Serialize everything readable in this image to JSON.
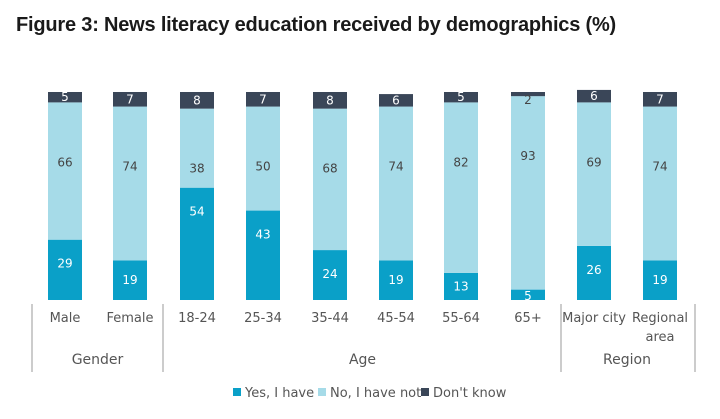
{
  "title": "Figure 3: News literacy education received by demographics (%)",
  "colors": {
    "yes": "#0aa0c8",
    "no": "#a6dbe8",
    "dont_know": "#3a4658",
    "label_dark": "#444444",
    "label_light": "#ffffff",
    "rule": "#999999"
  },
  "chart_data": {
    "type": "bar",
    "stacked": true,
    "percent_scale": true,
    "ylim": [
      0,
      100
    ],
    "categories": [
      "Male",
      "Female",
      "18-24",
      "25-34",
      "35-44",
      "45-54",
      "55-64",
      "65+",
      "Major city",
      "Regional area"
    ],
    "category_label_lines": [
      [
        "Male"
      ],
      [
        "Female"
      ],
      [
        "18-24"
      ],
      [
        "25-34"
      ],
      [
        "35-44"
      ],
      [
        "45-54"
      ],
      [
        "55-64"
      ],
      [
        "65+"
      ],
      [
        "Major city"
      ],
      [
        "Regional",
        "area"
      ]
    ],
    "series": [
      {
        "name": "Yes, I have",
        "key": "yes",
        "values": [
          29,
          19,
          54,
          43,
          24,
          19,
          13,
          5,
          26,
          19
        ]
      },
      {
        "name": "No, I have not",
        "key": "no",
        "values": [
          66,
          74,
          38,
          50,
          68,
          74,
          82,
          93,
          69,
          74
        ]
      },
      {
        "name": "Don't know",
        "key": "dont_know",
        "values": [
          5,
          7,
          8,
          7,
          8,
          6,
          5,
          2,
          6,
          7
        ]
      }
    ],
    "groups": [
      {
        "label": "Gender",
        "start": 0,
        "end": 1
      },
      {
        "label": "Age",
        "start": 2,
        "end": 7
      },
      {
        "label": "Region",
        "start": 8,
        "end": 9
      }
    ],
    "legend_position": "bottom",
    "grid": false
  }
}
